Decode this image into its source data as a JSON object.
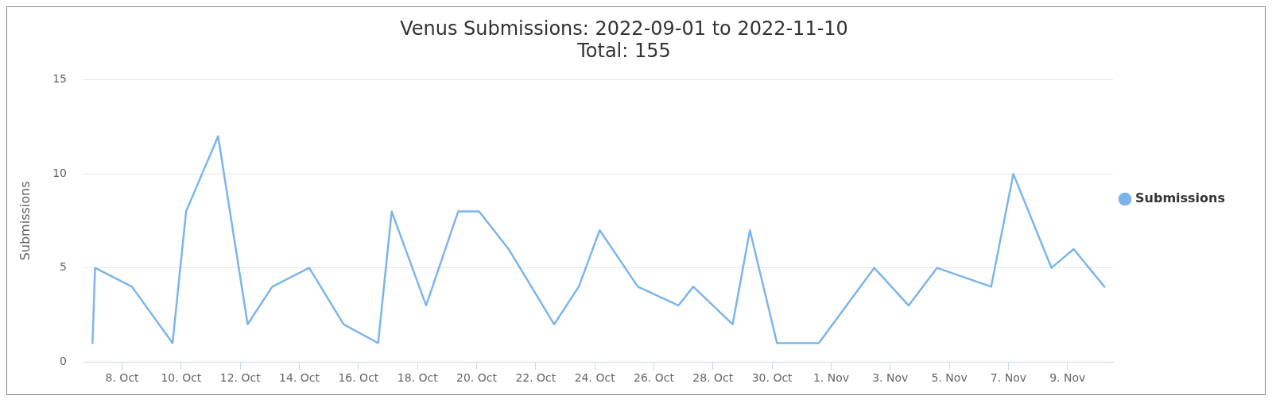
{
  "chart_data": {
    "type": "line",
    "title": "Venus Submissions: 2022-09-01 to 2022-11-10",
    "subtitle": "Total: 155",
    "ylabel": "Submissions",
    "x": [
      "2022-10-07T00:00",
      "2022-10-07T02:00",
      "2022-10-08T08:00",
      "2022-10-09T17:00",
      "2022-10-10T04:00",
      "2022-10-11T06:00",
      "2022-10-12T06:00",
      "2022-10-13T02:00",
      "2022-10-14T08:00",
      "2022-10-15T12:00",
      "2022-10-16T16:00",
      "2022-10-17T03:00",
      "2022-10-18T07:00",
      "2022-10-19T09:00",
      "2022-10-20T02:00",
      "2022-10-21T02:00",
      "2022-10-22T15:00",
      "2022-10-23T11:00",
      "2022-10-24T04:00",
      "2022-10-25T11:00",
      "2022-10-26T20:00",
      "2022-10-27T08:00",
      "2022-10-28T16:00",
      "2022-10-29T06:00",
      "2022-10-30T04:00",
      "2022-10-31T14:00",
      "2022-11-02T11:00",
      "2022-11-03T15:00",
      "2022-11-04T14:00",
      "2022-11-06T10:00",
      "2022-11-07T04:00",
      "2022-11-08T11:00",
      "2022-11-09T05:00",
      "2022-11-10T06:00"
    ],
    "series": [
      {
        "name": "Submissions",
        "color": "#7cb5ec",
        "values": [
          1,
          5,
          4,
          1,
          8,
          12,
          2,
          4,
          5,
          2,
          1,
          8,
          3,
          8,
          8,
          6,
          2,
          4,
          7,
          4,
          3,
          4,
          2,
          7,
          1,
          1,
          5,
          3,
          5,
          4,
          10,
          5,
          6,
          4
        ]
      }
    ],
    "xlim": [
      "2022-10-06T16:00",
      "2022-11-10T13:00"
    ],
    "xticks": [
      {
        "value": "2022-10-08",
        "label": "8. Oct"
      },
      {
        "value": "2022-10-10",
        "label": "10. Oct"
      },
      {
        "value": "2022-10-12",
        "label": "12. Oct"
      },
      {
        "value": "2022-10-14",
        "label": "14. Oct"
      },
      {
        "value": "2022-10-16",
        "label": "16. Oct"
      },
      {
        "value": "2022-10-18",
        "label": "18. Oct"
      },
      {
        "value": "2022-10-20",
        "label": "20. Oct"
      },
      {
        "value": "2022-10-22",
        "label": "22. Oct"
      },
      {
        "value": "2022-10-24",
        "label": "24. Oct"
      },
      {
        "value": "2022-10-26",
        "label": "26. Oct"
      },
      {
        "value": "2022-10-28",
        "label": "28. Oct"
      },
      {
        "value": "2022-10-30",
        "label": "30. Oct"
      },
      {
        "value": "2022-11-01",
        "label": "1. Nov"
      },
      {
        "value": "2022-11-03",
        "label": "3. Nov"
      },
      {
        "value": "2022-11-05",
        "label": "5. Nov"
      },
      {
        "value": "2022-11-07",
        "label": "7. Nov"
      },
      {
        "value": "2022-11-09",
        "label": "9. Nov"
      }
    ],
    "ylim": [
      0,
      15
    ],
    "yticks": [
      0,
      5,
      10,
      15
    ],
    "grid": "y",
    "legend": "right",
    "marker": "none",
    "line_style": "solid"
  }
}
